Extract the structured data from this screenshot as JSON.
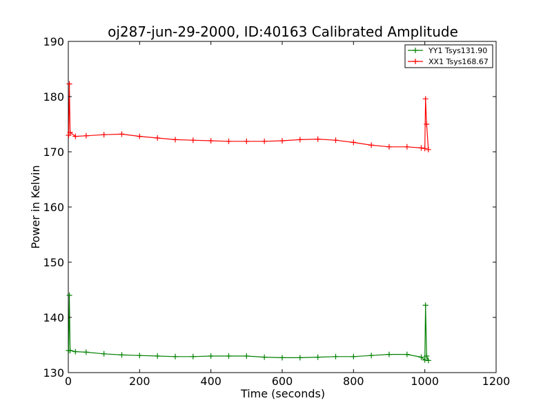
{
  "chart_data": {
    "type": "line",
    "title": "oj287-jun-29-2000, ID:40163 Calibrated Amplitude",
    "xlabel": "Time (seconds)",
    "ylabel": "Power in Kelvin",
    "xlim": [
      0,
      1200
    ],
    "ylim": [
      130,
      190
    ],
    "xticks": [
      0,
      200,
      400,
      600,
      800,
      1000,
      1200
    ],
    "yticks": [
      130,
      140,
      150,
      160,
      170,
      180,
      190
    ],
    "grid": false,
    "legend_position": "top-right",
    "series": [
      {
        "name": "YY1 Tsys131.90",
        "color": "#008000",
        "marker": "+",
        "x": [
          1,
          3,
          5,
          20,
          50,
          100,
          150,
          200,
          250,
          300,
          350,
          400,
          450,
          500,
          550,
          600,
          650,
          700,
          750,
          800,
          850,
          900,
          950,
          990,
          1000,
          1002,
          1005,
          1010
        ],
        "y": [
          134,
          144,
          134,
          133.8,
          133.7,
          133.4,
          133.2,
          133.1,
          133.0,
          132.9,
          132.9,
          133.0,
          133.0,
          133.0,
          132.8,
          132.7,
          132.7,
          132.8,
          132.9,
          132.9,
          133.1,
          133.3,
          133.3,
          132.8,
          132.3,
          142.2,
          133.0,
          132.2
        ]
      },
      {
        "name": "XX1 Tsys168.67",
        "color": "#ff0000",
        "marker": "+",
        "x": [
          1,
          3,
          5,
          20,
          50,
          100,
          150,
          200,
          250,
          300,
          350,
          400,
          450,
          500,
          550,
          600,
          650,
          700,
          750,
          800,
          850,
          900,
          950,
          990,
          1000,
          1002,
          1005,
          1010
        ],
        "y": [
          173,
          182.3,
          173.5,
          172.8,
          172.9,
          173.1,
          173.2,
          172.8,
          172.5,
          172.2,
          172.1,
          172.0,
          171.9,
          171.9,
          171.9,
          172.0,
          172.2,
          172.3,
          172.1,
          171.7,
          171.2,
          170.9,
          170.9,
          170.7,
          170.6,
          179.6,
          175.0,
          170.4
        ]
      }
    ]
  }
}
